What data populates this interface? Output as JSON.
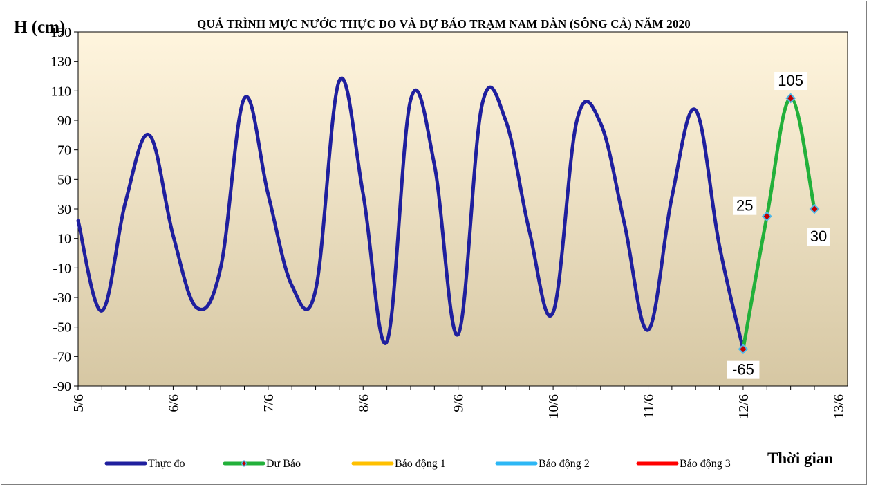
{
  "chart_data": {
    "type": "line",
    "title": "QUÁ TRÌNH  MỰC NƯỚC THỰC ĐO VÀ DỰ BÁO TRẠM   NAM  ĐÀN (SÔNG CẢ) NĂM 2020",
    "ylabel": "H (cm)",
    "xlabel": "Thời gian",
    "ylim": [
      -90,
      150
    ],
    "yticks": [
      -90,
      -70,
      -50,
      -30,
      -10,
      10,
      30,
      50,
      70,
      90,
      110,
      130,
      150
    ],
    "x_range": [
      0,
      34
    ],
    "x_tick_labels": [
      {
        "x": 0,
        "label": "5/6"
      },
      {
        "x": 4,
        "label": "6/6"
      },
      {
        "x": 8,
        "label": "7/6"
      },
      {
        "x": 12,
        "label": "8/6"
      },
      {
        "x": 16,
        "label": "9/6"
      },
      {
        "x": 20,
        "label": "10/6"
      },
      {
        "x": 24,
        "label": "11/6"
      },
      {
        "x": 28,
        "label": "12/6"
      },
      {
        "x": 32,
        "label": "13/6"
      }
    ],
    "grid": false,
    "legend_position": "bottom",
    "series": [
      {
        "name": "Thực đo",
        "color": "#1f1f9e",
        "points": [
          [
            0,
            22
          ],
          [
            1,
            -39
          ],
          [
            2,
            35
          ],
          [
            3,
            80
          ],
          [
            4,
            12
          ],
          [
            5,
            -37
          ],
          [
            6,
            -10
          ],
          [
            7,
            105
          ],
          [
            8,
            40
          ],
          [
            9,
            -22
          ],
          [
            10,
            -25
          ],
          [
            11,
            117
          ],
          [
            12,
            40
          ],
          [
            13,
            -60
          ],
          [
            14,
            104
          ],
          [
            15,
            60
          ],
          [
            16,
            -55
          ],
          [
            17,
            100
          ],
          [
            18,
            90
          ],
          [
            19,
            15
          ],
          [
            20,
            -40
          ],
          [
            21,
            90
          ],
          [
            22,
            88
          ],
          [
            23,
            20
          ],
          [
            24,
            -52
          ],
          [
            25,
            38
          ],
          [
            26,
            97
          ],
          [
            27,
            5
          ],
          [
            28,
            -65
          ]
        ]
      },
      {
        "name": "Dự Báo",
        "color": "#22b03a",
        "points": [
          [
            28,
            -65
          ],
          [
            29,
            25
          ],
          [
            30,
            105
          ],
          [
            31,
            30
          ]
        ]
      },
      {
        "name": "Báo động 1",
        "color": "#ffc000",
        "points": []
      },
      {
        "name": "Báo động 2",
        "color": "#2db7f5",
        "points": []
      },
      {
        "name": "Báo động 3",
        "color": "#ff0000",
        "points": []
      }
    ],
    "markers": [
      {
        "x": 28,
        "y": -65
      },
      {
        "x": 29,
        "y": 25
      },
      {
        "x": 30,
        "y": 105
      },
      {
        "x": 31,
        "y": 30
      }
    ],
    "data_labels": [
      {
        "text": "-65",
        "x": 28,
        "y": -65,
        "pos": "below"
      },
      {
        "text": "25",
        "x": 29,
        "y": 25,
        "pos": "left-above"
      },
      {
        "text": "105",
        "x": 30,
        "y": 105,
        "pos": "above"
      },
      {
        "text": "30",
        "x": 31,
        "y": 30,
        "pos": "below"
      }
    ],
    "colors": {
      "plot_top": "#fff5de",
      "plot_bottom": "#d6c7a3",
      "marker_fill": "#c00000",
      "marker_stroke": "#4fb8e8"
    }
  }
}
